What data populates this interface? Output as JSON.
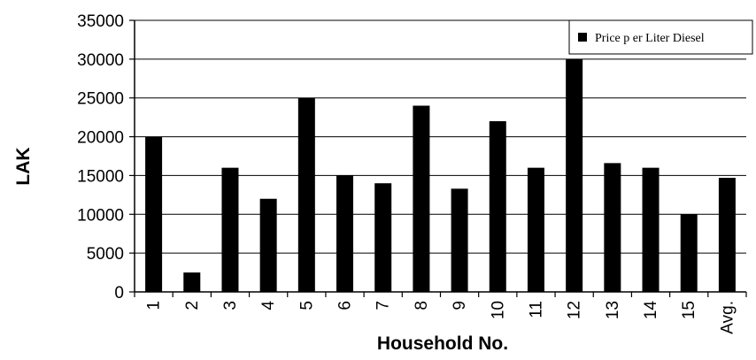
{
  "chart_data": {
    "type": "bar",
    "categories": [
      "1",
      "2",
      "3",
      "4",
      "5",
      "6",
      "7",
      "8",
      "9",
      "10",
      "11",
      "12",
      "13",
      "14",
      "15",
      "Avg."
    ],
    "series": [
      {
        "name": "Price p er Liter Diesel",
        "values": [
          20000,
          2500,
          16000,
          12000,
          25000,
          15000,
          14000,
          24000,
          13300,
          22000,
          16000,
          30000,
          16600,
          16000,
          10000,
          14700
        ],
        "color": "#000000"
      }
    ],
    "xlabel": "Household No.",
    "ylabel": "LAK",
    "ylim": [
      0,
      35000
    ],
    "yticks": [
      0,
      5000,
      10000,
      15000,
      20000,
      25000,
      30000,
      35000
    ],
    "grid": true,
    "legend_position": "top-right"
  }
}
